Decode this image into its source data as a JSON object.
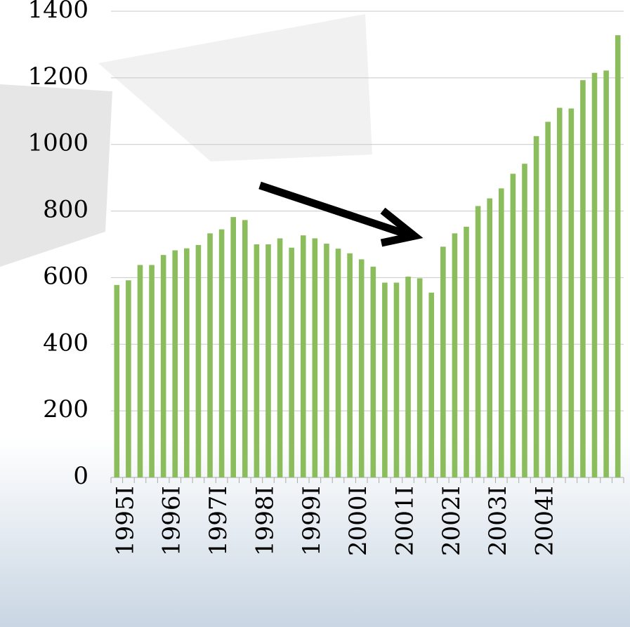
{
  "chart_data": {
    "type": "bar",
    "categories": [
      "1995I",
      null,
      null,
      null,
      "1996I",
      null,
      null,
      null,
      "1997I",
      null,
      null,
      null,
      "1998I",
      null,
      null,
      null,
      "1999I",
      null,
      null,
      null,
      "2000I",
      null,
      null,
      null,
      "2001I",
      null,
      null,
      null,
      "2002I",
      null,
      null,
      null,
      "2003I",
      null,
      null,
      null,
      "2004I",
      null,
      null,
      null,
      null,
      null,
      null,
      null
    ],
    "values": [
      578,
      592,
      638,
      638,
      668,
      682,
      688,
      698,
      733,
      745,
      782,
      773,
      700,
      700,
      718,
      690,
      727,
      718,
      702,
      687,
      673,
      655,
      633,
      585,
      585,
      603,
      598,
      555,
      693,
      733,
      753,
      815,
      838,
      868,
      912,
      942,
      1025,
      1068,
      1110,
      1108,
      1193,
      1215,
      1222,
      1328
    ],
    "color": "#8bbd5c",
    "ylim": [
      0,
      1400
    ],
    "yticks": [
      0,
      200,
      400,
      600,
      800,
      1000,
      1200,
      1400
    ],
    "grid": true
  }
}
